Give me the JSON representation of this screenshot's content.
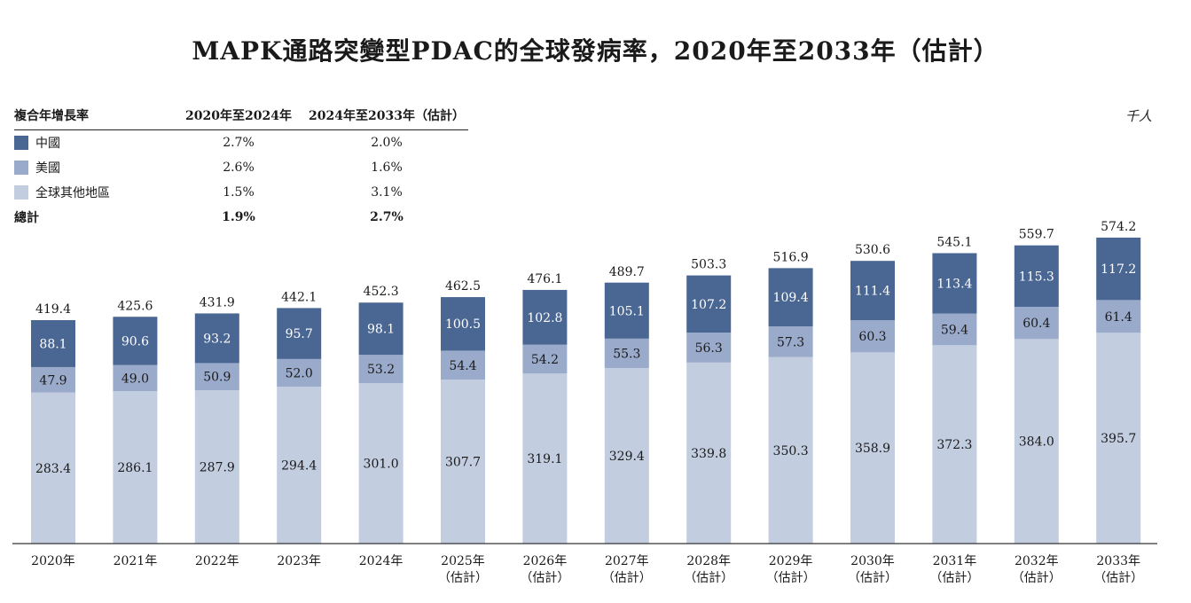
{
  "title": "MAPK通路突變型PDAC的全球發病率，2020年至2033年（估計）",
  "unit": "千人",
  "legend": {
    "header": [
      "複合年增長率",
      "2020年至2024年",
      "2024年至2033年（估計）"
    ],
    "rows": [
      {
        "name": "中國",
        "cagr1": "2.7%",
        "cagr2": "2.0%",
        "color": "#4a6793"
      },
      {
        "name": "美國",
        "cagr1": "2.6%",
        "cagr2": "1.6%",
        "color": "#9aaacb"
      },
      {
        "name": "全球其他地區",
        "cagr1": "1.5%",
        "cagr2": "3.1%",
        "color": "#c2cde0"
      }
    ],
    "total": {
      "name": "總計",
      "cagr1": "1.9%",
      "cagr2": "2.7%"
    }
  },
  "chart_data": {
    "type": "bar",
    "stacked": true,
    "title": "MAPK通路突變型PDAC的全球發病率，2020年至2033年（估計）",
    "ylabel": "千人",
    "categories": [
      {
        "year": "2020年",
        "sub": ""
      },
      {
        "year": "2021年",
        "sub": ""
      },
      {
        "year": "2022年",
        "sub": ""
      },
      {
        "year": "2023年",
        "sub": ""
      },
      {
        "year": "2024年",
        "sub": ""
      },
      {
        "year": "2025年",
        "sub": "（估計）"
      },
      {
        "year": "2026年",
        "sub": "（估計）"
      },
      {
        "year": "2027年",
        "sub": "（估計）"
      },
      {
        "year": "2028年",
        "sub": "（估計）"
      },
      {
        "year": "2029年",
        "sub": "（估計）"
      },
      {
        "year": "2030年",
        "sub": "（估計）"
      },
      {
        "year": "2031年",
        "sub": "（估計）"
      },
      {
        "year": "2032年",
        "sub": "（估計）"
      },
      {
        "year": "2033年",
        "sub": "（估計）"
      }
    ],
    "series": [
      {
        "name": "全球其他地區",
        "color": "#c2cde0",
        "values": [
          283.4,
          286.1,
          287.9,
          294.4,
          301.0,
          307.7,
          319.1,
          329.4,
          339.8,
          350.3,
          358.9,
          372.3,
          384.0,
          395.7
        ],
        "labels": [
          "283.4",
          "286.1",
          "287.9",
          "294.4",
          "301.0",
          "307.7",
          "319.1",
          "329.4",
          "339.8",
          "350.3",
          "358.9",
          "372.3",
          "384.0",
          "395.7"
        ]
      },
      {
        "name": "美國",
        "color": "#9aaacb",
        "values": [
          47.9,
          49.0,
          50.9,
          52.0,
          53.2,
          54.4,
          54.2,
          55.3,
          56.3,
          57.3,
          60.3,
          59.4,
          60.4,
          61.4
        ],
        "labels": [
          "47.9",
          "49.0",
          "50.9",
          "52.0",
          "53.2",
          "54.4",
          "54.2",
          "55.3",
          "56.3",
          "57.3",
          "60.3",
          "59.4",
          "60.4",
          "61.4"
        ]
      },
      {
        "name": "中國",
        "color": "#4a6793",
        "values": [
          88.1,
          90.6,
          93.2,
          95.7,
          98.1,
          100.5,
          102.8,
          105.1,
          107.2,
          109.4,
          111.4,
          113.4,
          115.3,
          117.2
        ],
        "labels": [
          "88.1",
          "90.6",
          "93.2",
          "95.7",
          "98.1",
          "100.5",
          "102.8",
          "105.1",
          "107.2",
          "109.4",
          "111.4",
          "113.4",
          "115.3",
          "117.2"
        ]
      }
    ],
    "totals": [
      419.4,
      425.6,
      431.9,
      442.1,
      452.3,
      462.5,
      476.1,
      489.7,
      503.3,
      516.9,
      530.6,
      545.1,
      559.7,
      574.2
    ],
    "total_labels": [
      "419.4",
      "425.6",
      "431.9",
      "442.1",
      "452.3",
      "462.5",
      "476.1",
      "489.7",
      "503.3",
      "516.9",
      "530.6",
      "545.1",
      "559.7",
      "574.2"
    ],
    "ylim": [
      0,
      574.2
    ],
    "grid": false
  }
}
